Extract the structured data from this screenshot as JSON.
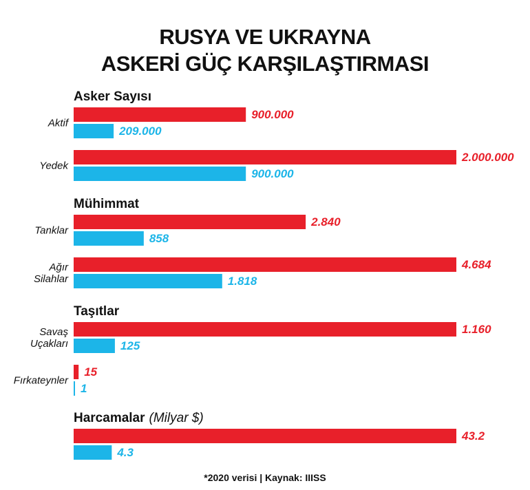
{
  "title_lines": [
    "RUSYA VE UKRAYNA",
    "ASKERİ GÜÇ KARŞILAŞTIRMASI"
  ],
  "footnote": "*2020 verisi | Kaynak: IIISS",
  "colors": {
    "russia": "#e8202a",
    "ukraine": "#1cb5e8",
    "text": "#111111"
  },
  "chart_data": {
    "type": "bar",
    "orientation": "horizontal",
    "series": [
      {
        "key": "russia",
        "color": "#e8202a"
      },
      {
        "key": "ukraine",
        "color": "#1cb5e8"
      }
    ],
    "sections": [
      {
        "header": "Asker Sayısı",
        "header_note": "",
        "items": [
          {
            "label": [
              "Aktif"
            ],
            "russia": 900000,
            "ukraine": 209000,
            "russia_label": "900.000",
            "ukraine_label": "209.000"
          },
          {
            "label": [
              "Yedek"
            ],
            "russia": 2000000,
            "ukraine": 900000,
            "russia_label": "2.000.000",
            "ukraine_label": "900.000"
          }
        ]
      },
      {
        "header": "Mühimmat",
        "header_note": "",
        "items": [
          {
            "label": [
              "Tanklar"
            ],
            "russia": 2840,
            "ukraine": 858,
            "russia_label": "2.840",
            "ukraine_label": "858"
          },
          {
            "label": [
              "Ağır",
              "Silahlar"
            ],
            "russia": 4684,
            "ukraine": 1818,
            "russia_label": "4.684",
            "ukraine_label": "1.818"
          }
        ]
      },
      {
        "header": "Taşıtlar",
        "header_note": "",
        "items": [
          {
            "label": [
              "Savaş",
              "Uçakları"
            ],
            "russia": 1160,
            "ukraine": 125,
            "russia_label": "1.160",
            "ukraine_label": "125"
          },
          {
            "label": [
              "Fırkateynler"
            ],
            "russia": 15,
            "ukraine": 1,
            "russia_label": "15",
            "ukraine_label": "1"
          }
        ]
      },
      {
        "header": "Harcamalar",
        "header_note": "(Milyar $)",
        "items": [
          {
            "label": [],
            "russia": 43.2,
            "ukraine": 4.3,
            "russia_label": "43.2",
            "ukraine_label": "4.3"
          }
        ]
      }
    ]
  }
}
